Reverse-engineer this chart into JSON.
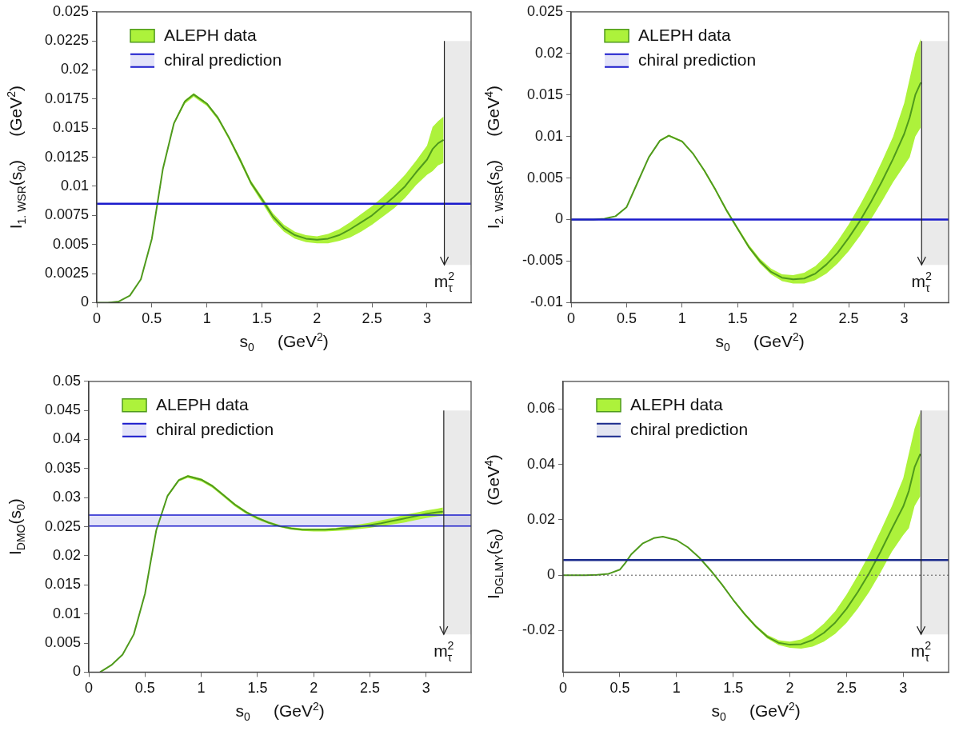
{
  "chart_data": [
    {
      "type": "line",
      "xlabel": "s$_{0}$     (GeV$^{2}$)",
      "ylabel": "I$_{1. WSR}$(s$_{0}$)     (GeV$^{2}$)",
      "xlim": [
        0,
        3.4
      ],
      "xticks": [
        0,
        0.5,
        1,
        1.5,
        2,
        2.5,
        3
      ],
      "ylim": [
        0,
        0.025
      ],
      "yticks": [
        0,
        0.0025,
        0.005,
        0.0075,
        0.01,
        0.0125,
        0.015,
        0.0175,
        0.02,
        0.0225,
        0.025
      ],
      "legend": "top left",
      "series": [
        {
          "name": "ALEPH data",
          "color": "#4f9a1c",
          "x": [
            0,
            0.1,
            0.2,
            0.3,
            0.4,
            0.5,
            0.55,
            0.6,
            0.7,
            0.8,
            0.88,
            1.0,
            1.1,
            1.2,
            1.3,
            1.4,
            1.5,
            1.6,
            1.7,
            1.8,
            1.9,
            2.0,
            2.1,
            2.2,
            2.3,
            2.4,
            2.5,
            2.6,
            2.7,
            2.8,
            2.9,
            3.0,
            3.05,
            3.1,
            3.15
          ],
          "values": [
            0,
            0,
            0.0001,
            0.0006,
            0.002,
            0.0055,
            0.0085,
            0.0115,
            0.0154,
            0.0173,
            0.0179,
            0.0171,
            0.0159,
            0.0142,
            0.0123,
            0.0103,
            0.0089,
            0.0074,
            0.0064,
            0.0058,
            0.0055,
            0.0054,
            0.0055,
            0.0058,
            0.0063,
            0.0069,
            0.0075,
            0.0083,
            0.0091,
            0.01,
            0.0112,
            0.0123,
            0.0132,
            0.0137,
            0.014
          ],
          "lower": [
            0,
            0,
            0.0001,
            0.0006,
            0.002,
            0.0055,
            0.0085,
            0.0115,
            0.0153,
            0.0171,
            0.0177,
            0.0169,
            0.0157,
            0.014,
            0.0121,
            0.0101,
            0.0086,
            0.0071,
            0.0061,
            0.0055,
            0.0052,
            0.0051,
            0.0051,
            0.0053,
            0.0056,
            0.0061,
            0.0067,
            0.0074,
            0.0081,
            0.009,
            0.0101,
            0.011,
            0.0113,
            0.0118,
            0.012
          ],
          "upper": [
            0,
            0,
            0.0001,
            0.0006,
            0.002,
            0.0055,
            0.0085,
            0.0115,
            0.0155,
            0.0174,
            0.018,
            0.0172,
            0.016,
            0.0143,
            0.0125,
            0.0105,
            0.0091,
            0.0077,
            0.0067,
            0.0061,
            0.0058,
            0.0057,
            0.0059,
            0.0063,
            0.0069,
            0.0076,
            0.0083,
            0.0091,
            0.01,
            0.011,
            0.0122,
            0.0135,
            0.0151,
            0.0156,
            0.016
          ]
        }
      ],
      "ref_lines": [
        {
          "axis": "y",
          "value": 0.0085,
          "label": "chiral prediction",
          "color": "#1a1acc"
        },
        {
          "axis": "x",
          "value": 3.157,
          "label": "m$_{τ}$$^{2}$",
          "color": "#222222"
        }
      ],
      "bands": [
        {
          "axis": "x",
          "from": 3.157,
          "to": 3.4,
          "color": "#bbbbbb"
        }
      ]
    },
    {
      "type": "line",
      "xlabel": "s$_{0}$     (GeV$^{2}$)",
      "ylabel": "I$_{2. WSR}$(s$_{0}$)     (GeV$^{4}$)",
      "xlim": [
        0,
        3.4
      ],
      "xticks": [
        0,
        0.5,
        1,
        1.5,
        2,
        2.5,
        3
      ],
      "ylim": [
        -0.01,
        0.025
      ],
      "yticks": [
        -0.01,
        -0.005,
        0,
        0.005,
        0.01,
        0.015,
        0.02,
        0.025
      ],
      "legend": "top left",
      "series": [
        {
          "name": "ALEPH data",
          "color": "#4f9a1c",
          "x": [
            0,
            0.2,
            0.3,
            0.4,
            0.5,
            0.6,
            0.7,
            0.8,
            0.88,
            1.0,
            1.1,
            1.2,
            1.3,
            1.4,
            1.5,
            1.6,
            1.7,
            1.8,
            1.9,
            2.0,
            2.1,
            2.2,
            2.3,
            2.4,
            2.5,
            2.6,
            2.7,
            2.8,
            2.9,
            3.0,
            3.05,
            3.1,
            3.15
          ],
          "values": [
            0,
            0,
            0.0001,
            0.0004,
            0.0015,
            0.0045,
            0.0075,
            0.0095,
            0.0101,
            0.0094,
            0.0079,
            0.0059,
            0.0036,
            0.0011,
            -0.0011,
            -0.0033,
            -0.005,
            -0.0063,
            -0.007,
            -0.0072,
            -0.0071,
            -0.0065,
            -0.0054,
            -0.004,
            -0.0022,
            -0.0002,
            0.0021,
            0.0046,
            0.0073,
            0.0103,
            0.0123,
            0.015,
            0.0165
          ],
          "lower": [
            0,
            0,
            0.0001,
            0.0004,
            0.0015,
            0.0045,
            0.0074,
            0.0094,
            0.01,
            0.0093,
            0.0078,
            0.0057,
            0.0034,
            0.0009,
            -0.0013,
            -0.0035,
            -0.0053,
            -0.0066,
            -0.0074,
            -0.0077,
            -0.0077,
            -0.0073,
            -0.0065,
            -0.0053,
            -0.0038,
            -0.002,
            0,
            0.0022,
            0.0045,
            0.0065,
            0.0075,
            0.01,
            0.0111
          ],
          "upper": [
            0,
            0,
            0.0001,
            0.0004,
            0.0015,
            0.0045,
            0.0075,
            0.0096,
            0.0102,
            0.0095,
            0.008,
            0.006,
            0.0037,
            0.0013,
            -0.0009,
            -0.003,
            -0.0047,
            -0.0059,
            -0.0066,
            -0.0067,
            -0.0064,
            -0.0056,
            -0.0043,
            -0.0026,
            -0.0006,
            0.0017,
            0.0042,
            0.007,
            0.01,
            0.014,
            0.017,
            0.02,
            0.0218
          ]
        }
      ],
      "ref_lines": [
        {
          "axis": "y",
          "value": 0,
          "label": "chiral prediction",
          "color": "#1a1acc"
        },
        {
          "axis": "x",
          "value": 3.157,
          "label": "m$_{τ}$$^{2}$",
          "color": "#222222"
        }
      ],
      "bands": [
        {
          "axis": "x",
          "from": 3.157,
          "to": 3.4,
          "color": "#bbbbbb"
        }
      ]
    },
    {
      "type": "line",
      "xlabel": "s$_{0}$     (GeV$^{2}$)",
      "ylabel": "I$_{DMO}$(s$_{0}$)",
      "xlim": [
        0,
        3.4
      ],
      "xticks": [
        0,
        0.5,
        1,
        1.5,
        2,
        2.5,
        3
      ],
      "ylim": [
        0,
        0.05
      ],
      "yticks": [
        0,
        0.005,
        0.01,
        0.015,
        0.02,
        0.025,
        0.03,
        0.035,
        0.04,
        0.045,
        0.05
      ],
      "legend": "top left",
      "series": [
        {
          "name": "ALEPH data",
          "color": "#4f9a1c",
          "x": [
            0.1,
            0.2,
            0.3,
            0.4,
            0.5,
            0.55,
            0.6,
            0.7,
            0.8,
            0.88,
            1.0,
            1.1,
            1.2,
            1.3,
            1.4,
            1.5,
            1.6,
            1.7,
            1.8,
            1.9,
            2.0,
            2.1,
            2.2,
            2.3,
            2.4,
            2.5,
            2.6,
            2.7,
            2.8,
            2.9,
            3.0,
            3.1,
            3.15
          ],
          "values": [
            0,
            0.0012,
            0.003,
            0.0065,
            0.0135,
            0.019,
            0.0244,
            0.0303,
            0.033,
            0.0337,
            0.0331,
            0.032,
            0.0304,
            0.0288,
            0.0275,
            0.0265,
            0.0257,
            0.0251,
            0.0247,
            0.0245,
            0.0245,
            0.0245,
            0.0246,
            0.0248,
            0.025,
            0.0253,
            0.0256,
            0.026,
            0.0264,
            0.0268,
            0.0272,
            0.0275,
            0.0276
          ],
          "lower": [
            0,
            0.0012,
            0.003,
            0.0065,
            0.0135,
            0.019,
            0.0243,
            0.0301,
            0.0328,
            0.0334,
            0.0328,
            0.0317,
            0.0301,
            0.0285,
            0.0272,
            0.0262,
            0.0255,
            0.0249,
            0.0245,
            0.0243,
            0.0242,
            0.0242,
            0.0243,
            0.0244,
            0.0246,
            0.0248,
            0.0251,
            0.0254,
            0.0257,
            0.0261,
            0.0265,
            0.0268,
            0.0269
          ],
          "upper": [
            0,
            0.0012,
            0.003,
            0.0065,
            0.0135,
            0.019,
            0.0245,
            0.0305,
            0.0332,
            0.0339,
            0.0333,
            0.0322,
            0.0306,
            0.029,
            0.0277,
            0.0267,
            0.0259,
            0.0253,
            0.0249,
            0.0247,
            0.0247,
            0.0247,
            0.0248,
            0.0251,
            0.0254,
            0.0257,
            0.0261,
            0.0265,
            0.027,
            0.0274,
            0.0278,
            0.0281,
            0.0283
          ]
        }
      ],
      "ref_lines": [
        {
          "axis": "y",
          "value": 0.0251,
          "color": "#1a1acc"
        },
        {
          "axis": "y",
          "value": 0.027,
          "color": "#1a1acc"
        },
        {
          "axis": "x",
          "value": 3.157,
          "label": "m$_{τ}$$^{2}$",
          "color": "#222222"
        }
      ],
      "bands": [
        {
          "axis": "y",
          "from": 0.0251,
          "to": 0.027,
          "label": "chiral prediction",
          "color": "#1a1acc"
        },
        {
          "axis": "x",
          "from": 3.157,
          "to": 3.4,
          "color": "#bbbbbb"
        }
      ]
    },
    {
      "type": "line",
      "xlabel": "s$_{0}$     (GeV$^{2}$)",
      "ylabel": "I$_{DGLMY}$(s$_{0}$)     (GeV$^{4}$)",
      "xlim": [
        0,
        3.4
      ],
      "xticks": [
        0,
        0.5,
        1,
        1.5,
        2,
        2.5,
        3
      ],
      "ylim": [
        -0.035,
        0.07
      ],
      "yticks": [
        -0.02,
        0,
        0.02,
        0.04,
        0.06
      ],
      "legend": "top left",
      "series": [
        {
          "name": "ALEPH data",
          "color": "#4f9a1c",
          "x": [
            0,
            0.2,
            0.3,
            0.4,
            0.5,
            0.55,
            0.6,
            0.7,
            0.8,
            0.88,
            1.0,
            1.1,
            1.2,
            1.3,
            1.4,
            1.5,
            1.6,
            1.7,
            1.8,
            1.9,
            2.0,
            2.1,
            2.2,
            2.3,
            2.4,
            2.5,
            2.6,
            2.7,
            2.8,
            2.9,
            3.0,
            3.05,
            3.1,
            3.15
          ],
          "values": [
            0,
            0,
            0.0001,
            0.0005,
            0.002,
            0.0045,
            0.0075,
            0.0114,
            0.0134,
            0.0139,
            0.0127,
            0.0101,
            0.0064,
            0.0018,
            -0.0033,
            -0.0089,
            -0.014,
            -0.0185,
            -0.0222,
            -0.0244,
            -0.0251,
            -0.0249,
            -0.0234,
            -0.0208,
            -0.0171,
            -0.0121,
            -0.006,
            0.0008,
            0.0085,
            0.0168,
            0.0248,
            0.0305,
            0.039,
            0.0438
          ],
          "lower": [
            0,
            0,
            0.0001,
            0.0005,
            0.002,
            0.0045,
            0.0075,
            0.0113,
            0.0133,
            0.0138,
            0.0125,
            0.0099,
            0.0062,
            0.0015,
            -0.0036,
            -0.0092,
            -0.0145,
            -0.019,
            -0.0228,
            -0.0252,
            -0.0262,
            -0.0265,
            -0.0258,
            -0.024,
            -0.0212,
            -0.0172,
            -0.012,
            -0.006,
            0.001,
            0.0085,
            0.0145,
            0.017,
            0.025,
            0.0285
          ],
          "upper": [
            0,
            0,
            0.0001,
            0.0005,
            0.002,
            0.0045,
            0.0075,
            0.0115,
            0.0135,
            0.014,
            0.0128,
            0.0102,
            0.0065,
            0.002,
            -0.003,
            -0.0085,
            -0.0135,
            -0.018,
            -0.0215,
            -0.0235,
            -0.024,
            -0.0232,
            -0.021,
            -0.0175,
            -0.013,
            -0.007,
            0,
            0.0075,
            0.016,
            0.025,
            0.035,
            0.044,
            0.053,
            0.059
          ]
        }
      ],
      "ref_lines": [
        {
          "axis": "y",
          "value": 0.0055,
          "label": "chiral prediction",
          "color": "#1a2a8c"
        },
        {
          "axis": "y",
          "value": 0,
          "color": "#555555",
          "line_style": "dotted"
        },
        {
          "axis": "x",
          "value": 3.157,
          "label": "m$_{τ}$$^{2}$",
          "color": "#222222"
        }
      ],
      "bands": [
        {
          "axis": "x",
          "from": 3.157,
          "to": 3.4,
          "color": "#bbbbbb"
        }
      ]
    }
  ]
}
